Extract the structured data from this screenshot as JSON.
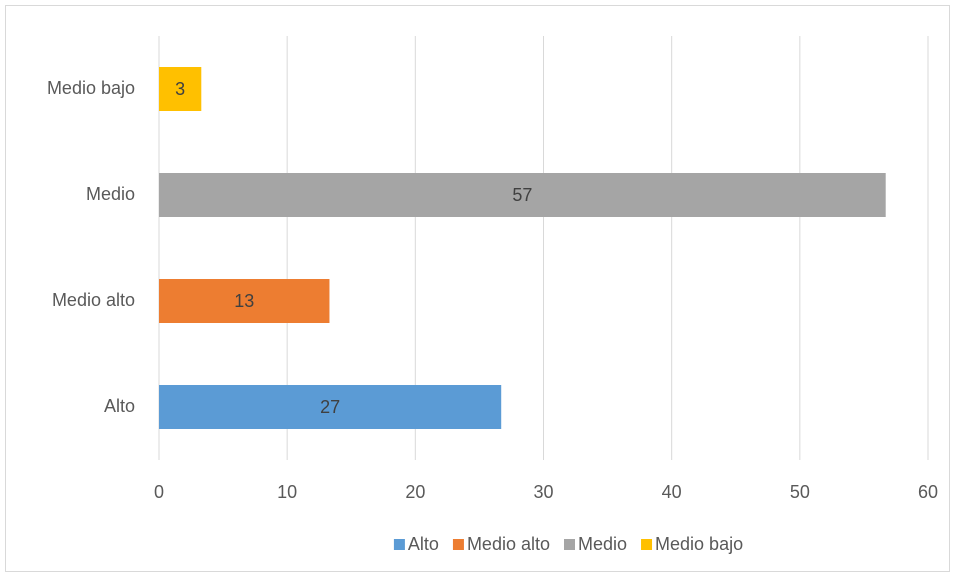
{
  "chart_data": {
    "type": "bar",
    "orientation": "horizontal",
    "categories": [
      "Alto",
      "Medio alto",
      "Medio",
      "Medio bajo"
    ],
    "values": [
      26.7,
      13.3,
      56.7,
      3.3
    ],
    "value_labels": [
      "27",
      "13",
      "57",
      "3"
    ],
    "colors": [
      "#5b9bd5",
      "#ed7d31",
      "#a5a5a5",
      "#ffc000"
    ],
    "xlim": [
      0,
      60
    ],
    "xticks": [
      0,
      10,
      20,
      30,
      40,
      50,
      60
    ],
    "grid": true,
    "legend": "bottom"
  }
}
